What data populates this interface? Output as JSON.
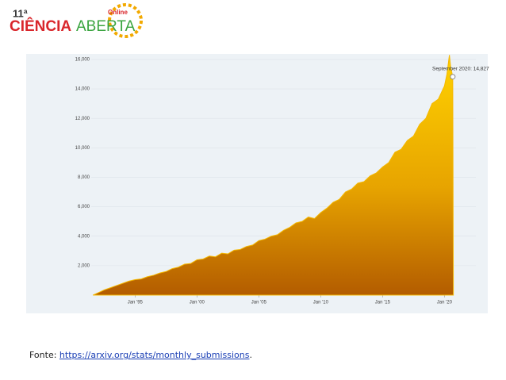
{
  "logo": {
    "edition": "11ª",
    "word1": "CIÊNCIA",
    "word2": "ABERTA",
    "badge": "Online"
  },
  "chart_data": {
    "type": "area",
    "x": [
      1991.6,
      1992,
      1992.5,
      1993,
      1993.5,
      1994,
      1994.5,
      1995,
      1995.5,
      1996,
      1996.5,
      1997,
      1997.5,
      1998,
      1998.5,
      1999,
      1999.5,
      2000,
      2000.5,
      2001,
      2001.5,
      2002,
      2002.5,
      2003,
      2003.5,
      2004,
      2004.5,
      2005,
      2005.5,
      2006,
      2006.5,
      2007,
      2007.5,
      2008,
      2008.5,
      2009,
      2009.5,
      2010,
      2010.5,
      2011,
      2011.5,
      2012,
      2012.5,
      2013,
      2013.5,
      2014,
      2014.5,
      2015,
      2015.5,
      2016,
      2016.5,
      2017,
      2017.5,
      2018,
      2018.5,
      2019,
      2019.5,
      2020,
      2020.2,
      2020.4,
      2020.5,
      2020.67,
      2020.72
    ],
    "values": [
      0,
      150,
      350,
      500,
      650,
      800,
      950,
      1050,
      1100,
      1250,
      1350,
      1500,
      1600,
      1800,
      1900,
      2100,
      2150,
      2400,
      2450,
      2650,
      2600,
      2850,
      2800,
      3050,
      3100,
      3300,
      3400,
      3700,
      3800,
      4000,
      4100,
      4400,
      4600,
      4900,
      5000,
      5300,
      5200,
      5600,
      5900,
      6300,
      6500,
      7000,
      7200,
      7600,
      7700,
      8100,
      8300,
      8700,
      9000,
      9700,
      9900,
      10500,
      10800,
      11600,
      12000,
      13000,
      13300,
      14200,
      15000,
      16300,
      15500,
      14827,
      600
    ],
    "color": "#f5b800",
    "xlim": [
      1986.2,
      2023.5
    ],
    "xticks": [
      {
        "value": 1995,
        "label": "Jan '95"
      },
      {
        "value": 2000,
        "label": "Jan '00"
      },
      {
        "value": 2005,
        "label": "Jan '05"
      },
      {
        "value": 2010,
        "label": "Jan '10"
      },
      {
        "value": 2015,
        "label": "Jan '15"
      },
      {
        "value": 2020,
        "label": "Jan '20"
      }
    ],
    "ylim": [
      0,
      16400
    ],
    "yticks": [
      {
        "value": 2000,
        "label": "2,000"
      },
      {
        "value": 4000,
        "label": "4,000"
      },
      {
        "value": 6000,
        "label": "6,000"
      },
      {
        "value": 8000,
        "label": "8,000"
      },
      {
        "value": 10000,
        "label": "10,000"
      },
      {
        "value": 12000,
        "label": "12,000"
      },
      {
        "value": 14000,
        "label": "14,000"
      },
      {
        "value": 16000,
        "label": "16,000"
      }
    ],
    "annotation": "September 2020: 14,827",
    "annotation_index": 61
  },
  "footer": {
    "prefix": "Fonte: ",
    "link": "https://arxiv.org/stats/monthly_submissions",
    "suffix": "."
  }
}
